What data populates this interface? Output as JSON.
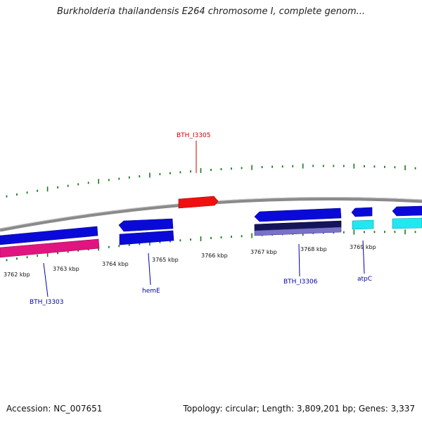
{
  "title": "Burkholderia thailandensis E264 chromosome I, complete genom...",
  "footer": {
    "accession": "Accession: NC_007651",
    "summary": "Topology: circular; Length: 3,809,201 bp; Genes: 3,337"
  },
  "colors": {
    "backbone": "#888888",
    "tick": "#1a7a1a",
    "forward_gene": "#0a0ad8",
    "pink_gene": "#e0157f",
    "red_gene": "#f01010",
    "cyan_gene": "#20e8f0",
    "dark_navy": "#14145a",
    "lavender": "#7a72c8",
    "label_blue": "#0000aa",
    "label_red": "#cc0000"
  },
  "ruler": {
    "units": "kbp",
    "labels": [
      "3762 kbp",
      "3763 kbp",
      "3764 kbp",
      "3765 kbp",
      "3766 kbp",
      "3767 kbp",
      "3768 kbp",
      "3769 kbp"
    ]
  },
  "gene_labels": [
    {
      "text": "BTH_I3305",
      "color": "red"
    },
    {
      "text": "BTH_I3303",
      "color": "blue"
    },
    {
      "text": "hemE",
      "color": "blue"
    },
    {
      "text": "BTH_I3306",
      "color": "blue"
    },
    {
      "text": "atpC",
      "color": "blue"
    }
  ]
}
